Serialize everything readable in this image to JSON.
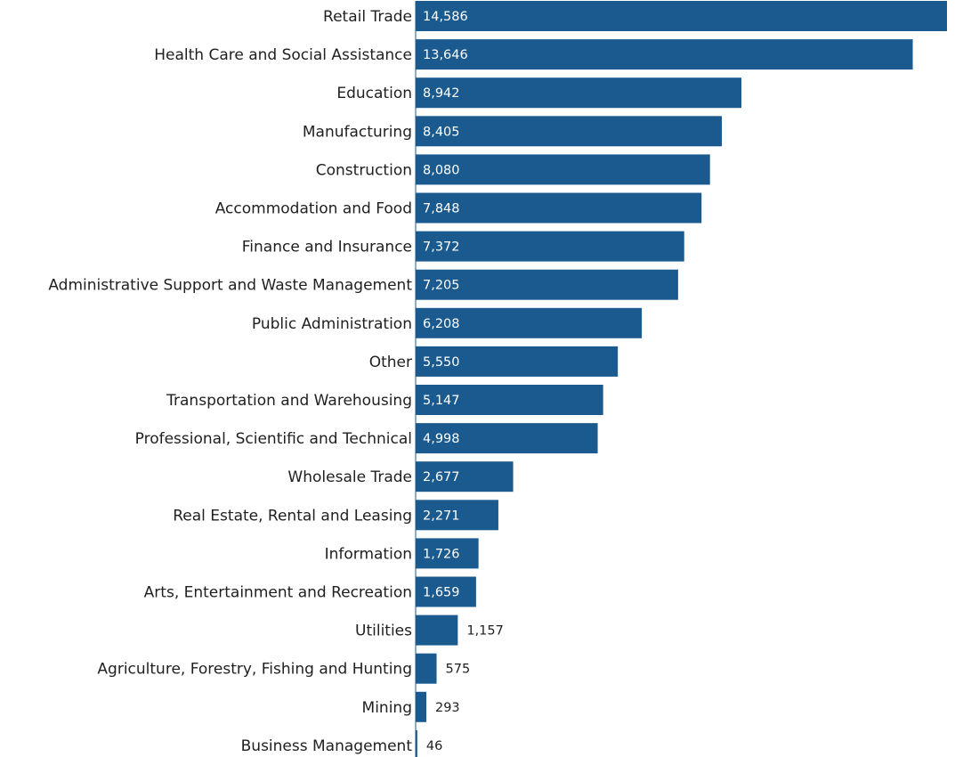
{
  "chart_data": {
    "type": "bar",
    "orientation": "horizontal",
    "categories": [
      "Retail Trade",
      "Health Care and Social Assistance",
      "Education",
      "Manufacturing",
      "Construction",
      "Accommodation and Food",
      "Finance and Insurance",
      "Administrative Support and Waste Management",
      "Public Administration",
      "Other",
      "Transportation and Warehousing",
      "Professional, Scientific and Technical",
      "Wholesale Trade",
      "Real Estate, Rental and Leasing",
      "Information",
      "Arts, Entertainment and Recreation",
      "Utilities",
      "Agriculture, Forestry, Fishing and Hunting",
      "Mining",
      "Business Management"
    ],
    "values": [
      14586,
      13646,
      8942,
      8405,
      8080,
      7848,
      7372,
      7205,
      6208,
      5550,
      5147,
      4998,
      2677,
      2271,
      1726,
      1659,
      1157,
      575,
      293,
      46
    ],
    "value_labels": [
      "14,586",
      "13,646",
      "8,942",
      "8,405",
      "8,080",
      "7,848",
      "7,372",
      "7,205",
      "6,208",
      "5,550",
      "5,147",
      "4,998",
      "2,677",
      "2,271",
      "1,726",
      "1,659",
      "1,157",
      "575",
      "293",
      "46"
    ],
    "title": "",
    "xlabel": "",
    "ylabel": "",
    "xlim": [
      0,
      14586
    ],
    "grid": false,
    "legend": "none",
    "bar_color": "#1b5a8e",
    "label_inside_color": "#ffffff",
    "label_outside_color": "#1f1f1f"
  }
}
